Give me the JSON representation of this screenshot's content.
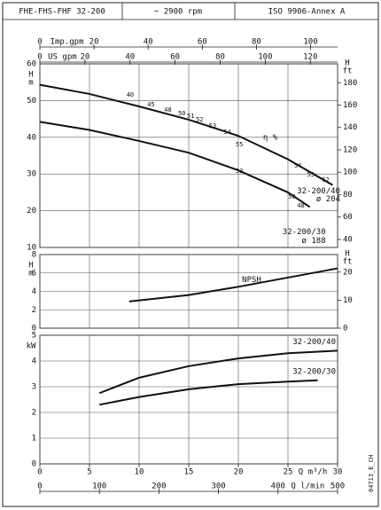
{
  "header": {
    "cells": [
      "FHE-FHS-FHF 32-200",
      "~ 2900 rpm",
      "ISO 9906-Annex A"
    ]
  },
  "footnote": "04713_E_CH",
  "chart_data": [
    {
      "type": "line",
      "ylabel": [
        "H",
        "m"
      ],
      "y2label": [
        "H",
        "ft"
      ],
      "xlim": [
        0,
        30
      ],
      "ylim": [
        10,
        60
      ],
      "yticks": [
        10,
        20,
        30,
        40,
        50,
        60
      ],
      "y2lim": [
        32.81,
        196.85
      ],
      "y2ticks": [
        40,
        60,
        80,
        100,
        120,
        140,
        160,
        180
      ],
      "x2axes": [
        {
          "label": "Imp.gpm",
          "lim": [
            0,
            109.98
          ],
          "ticks": [
            0,
            20,
            40,
            60,
            80,
            100
          ]
        },
        {
          "label": "US gpm",
          "lim": [
            0,
            132.09
          ],
          "ticks": [
            0,
            20,
            40,
            60,
            80,
            100,
            120
          ]
        }
      ],
      "series": [
        {
          "name": "32-200/40",
          "impeller": "ø 204",
          "color": "#111",
          "x": [
            0,
            5,
            10,
            15,
            20,
            25,
            29.5
          ],
          "values": [
            54.3,
            51.8,
            48.4,
            44.8,
            40.4,
            34.0,
            27.0
          ]
        },
        {
          "name": "32-200/30",
          "impeller": "ø 188",
          "color": "#111",
          "x": [
            0,
            5,
            10,
            15,
            20,
            25,
            27.2
          ],
          "values": [
            44.2,
            42.0,
            39.0,
            35.8,
            31.0,
            25.0,
            21.0
          ]
        }
      ],
      "efficiency_title": "η %",
      "efficiency_labels": [
        {
          "label": "40",
          "x": 9.1,
          "y": 51.5
        },
        {
          "label": "45",
          "x": 11.2,
          "y": 48.9
        },
        {
          "label": "48",
          "x": 12.9,
          "y": 47.4
        },
        {
          "label": "50",
          "x": 14.3,
          "y": 46.5
        },
        {
          "label": "51",
          "x": 15.2,
          "y": 45.7
        },
        {
          "label": "52",
          "x": 16.1,
          "y": 44.8
        },
        {
          "label": "53",
          "x": 17.4,
          "y": 43.1
        },
        {
          "label": "54",
          "x": 18.9,
          "y": 41.4
        },
        {
          "label": "55",
          "x": 20.1,
          "y": 38.0
        },
        {
          "label": "54",
          "x": 26.0,
          "y": 32.2
        },
        {
          "label": "53",
          "x": 27.3,
          "y": 29.8
        },
        {
          "label": "52",
          "x": 28.8,
          "y": 28.4
        },
        {
          "label": "53",
          "x": 20.1,
          "y": 30.8
        },
        {
          "label": "50",
          "x": 25.4,
          "y": 23.8
        },
        {
          "label": "48",
          "x": 26.3,
          "y": 21.4
        }
      ]
    },
    {
      "type": "line",
      "ylabel": [
        "H",
        "m"
      ],
      "y2label": [
        "H",
        "ft"
      ],
      "xlim": [
        0,
        30
      ],
      "ylim": [
        0,
        8
      ],
      "yticks": [
        0,
        2,
        4,
        6,
        8
      ],
      "y2lim": [
        0,
        26.25
      ],
      "y2ticks": [
        0,
        10,
        20
      ],
      "series": [
        {
          "name": "NPSH",
          "color": "#111",
          "x": [
            9,
            15,
            20,
            25,
            30
          ],
          "values": [
            2.9,
            3.6,
            4.5,
            5.5,
            6.5
          ]
        }
      ]
    },
    {
      "type": "line",
      "ylabel": [
        "kW"
      ],
      "xlabel": "Q m³/h",
      "xlim": [
        0,
        30
      ],
      "xticks": [
        0,
        5,
        10,
        15,
        20,
        25,
        30
      ],
      "ylim": [
        0,
        5
      ],
      "yticks": [
        0,
        1,
        2,
        3,
        4,
        5
      ],
      "x2axes": [
        {
          "label": "Q l/min",
          "lim": [
            0,
            500
          ],
          "ticks": [
            0,
            100,
            200,
            300,
            400,
            500
          ]
        }
      ],
      "series": [
        {
          "name": "32-200/40",
          "color": "#111",
          "x": [
            6,
            10,
            15,
            20,
            25,
            30
          ],
          "values": [
            2.75,
            3.35,
            3.8,
            4.1,
            4.3,
            4.4
          ]
        },
        {
          "name": "32-200/30",
          "color": "#111",
          "x": [
            6,
            10,
            15,
            20,
            25,
            28
          ],
          "values": [
            2.3,
            2.6,
            2.9,
            3.1,
            3.2,
            3.25
          ]
        }
      ]
    }
  ]
}
